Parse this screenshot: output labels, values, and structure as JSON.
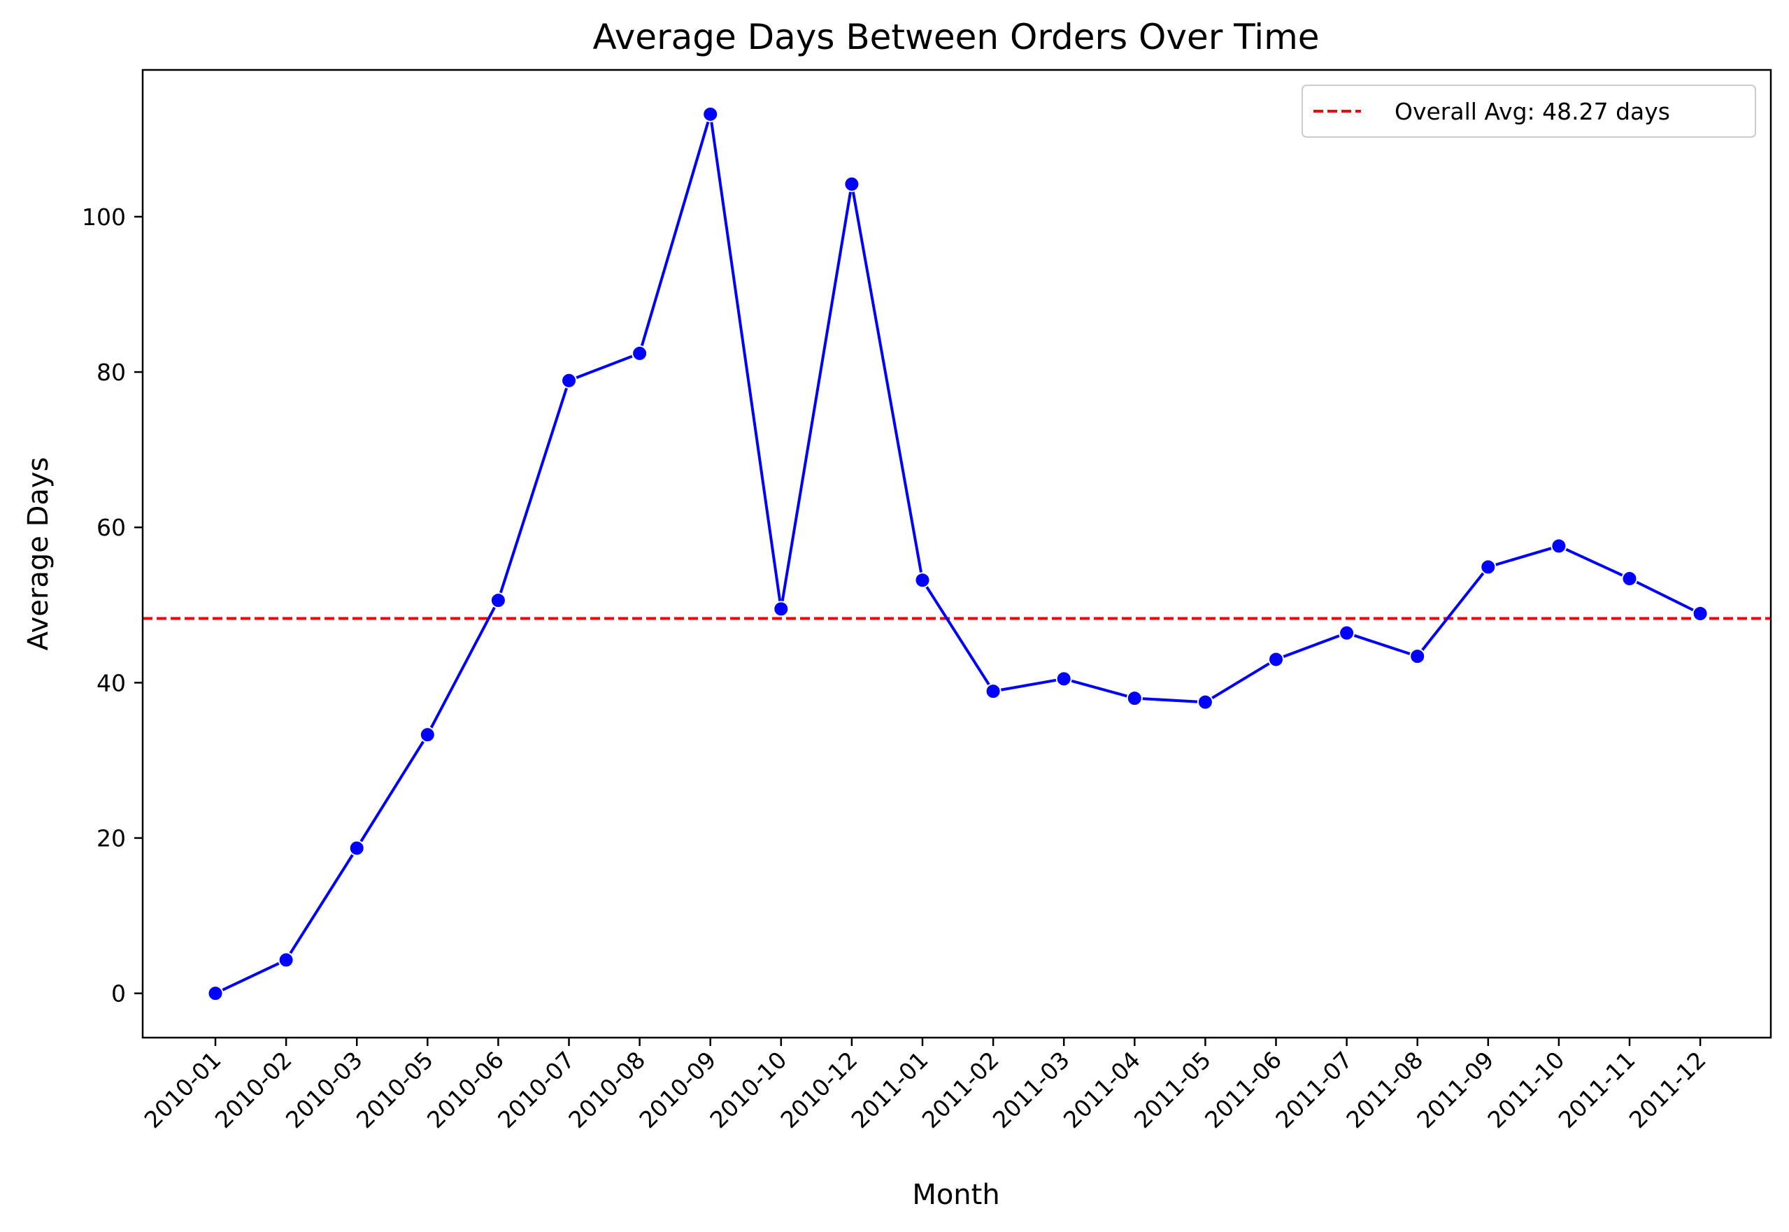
{
  "chart_data": {
    "type": "line",
    "title": "Average Days Between Orders Over Time",
    "xlabel": "Month",
    "ylabel": "Average Days",
    "categories": [
      "2010-01",
      "2010-02",
      "2010-03",
      "2010-05",
      "2010-06",
      "2010-07",
      "2010-08",
      "2010-09",
      "2010-10",
      "2010-12",
      "2011-01",
      "2011-02",
      "2011-03",
      "2011-04",
      "2011-05",
      "2011-06",
      "2011-07",
      "2011-08",
      "2011-09",
      "2011-10",
      "2011-11",
      "2011-12"
    ],
    "series": [
      {
        "values": [
          0.0,
          4.3,
          18.7,
          33.3,
          50.6,
          78.9,
          82.4,
          113.2,
          49.5,
          104.2,
          53.2,
          38.9,
          40.5,
          38.0,
          37.5,
          43.0,
          46.4,
          43.4,
          54.9,
          57.6,
          53.4,
          48.9
        ],
        "color": "#0000ff"
      }
    ],
    "reference_line": {
      "label": "Overall Avg: 48.27 days",
      "value": 48.27,
      "color": "#ff0000",
      "style": "dashed"
    },
    "yticks": [
      0,
      20,
      40,
      60,
      80,
      100
    ],
    "ylim": [
      -5.7,
      118.9
    ],
    "grid": false,
    "legend_position": "top-right"
  }
}
